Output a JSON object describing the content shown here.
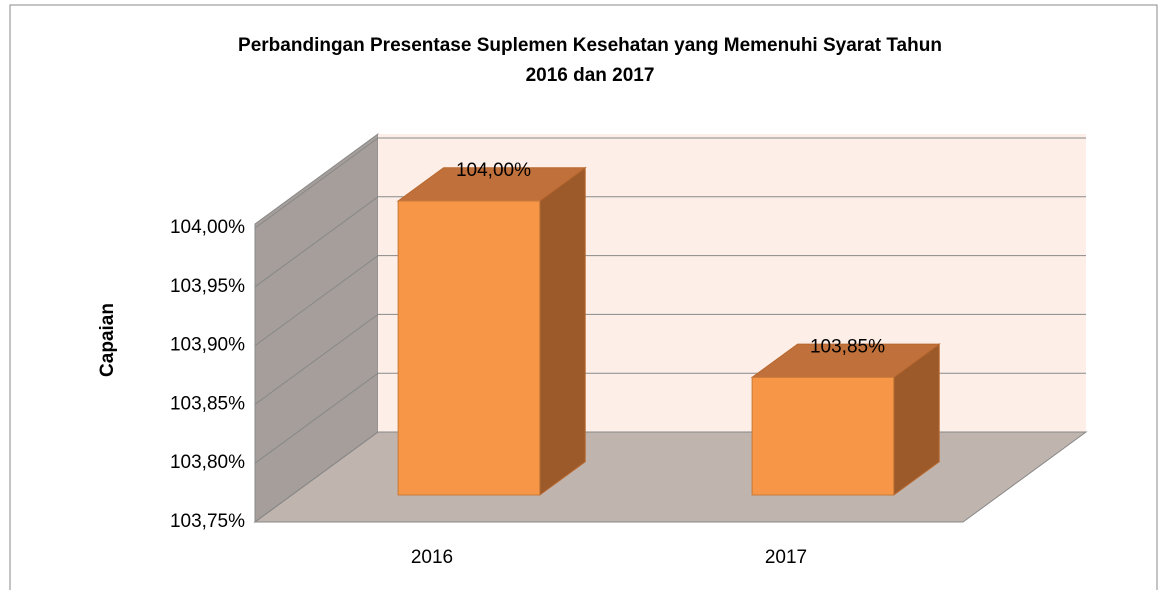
{
  "chart_data": {
    "type": "bar3d",
    "title": [
      "Perbandingan Presentase Suplemen Kesehatan  yang Memenuhi Syarat Tahun",
      "2016 dan 2017"
    ],
    "y_label": "Capaian",
    "categories": [
      "2016",
      "2017"
    ],
    "values": [
      104.0,
      103.85
    ],
    "value_labels": [
      "104,00%",
      "103,85%"
    ],
    "color": "#f79646",
    "ylim": [
      103.75,
      104.0
    ],
    "yticks": [
      {
        "value": 103.75,
        "label": "103,75%"
      },
      {
        "value": 103.8,
        "label": "103,80%"
      },
      {
        "value": 103.85,
        "label": "103,85%"
      },
      {
        "value": 103.9,
        "label": "103,90%"
      },
      {
        "value": 103.95,
        "label": "103,95%"
      },
      {
        "value": 104.0,
        "label": "104,00%"
      }
    ],
    "grid": true
  }
}
